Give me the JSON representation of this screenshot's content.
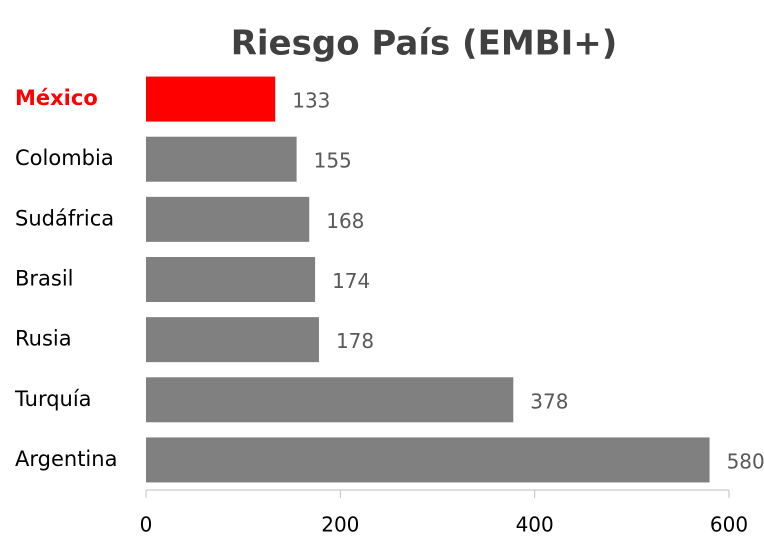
{
  "chart_data": {
    "type": "bar",
    "orientation": "horizontal",
    "title": "Riesgo País (EMBI+)",
    "categories": [
      "México",
      "Colombia",
      "Sudáfrica",
      "Brasil",
      "Rusia",
      "Turquía",
      "Argentina"
    ],
    "values": [
      133,
      155,
      168,
      174,
      178,
      378,
      580
    ],
    "colors": [
      "#ff0000",
      "#808080",
      "#808080",
      "#808080",
      "#808080",
      "#808080",
      "#808080"
    ],
    "highlight_color": "#ff0000",
    "xlim": [
      0,
      600
    ],
    "xticks": [
      0,
      200,
      400,
      600
    ],
    "grid": false
  }
}
